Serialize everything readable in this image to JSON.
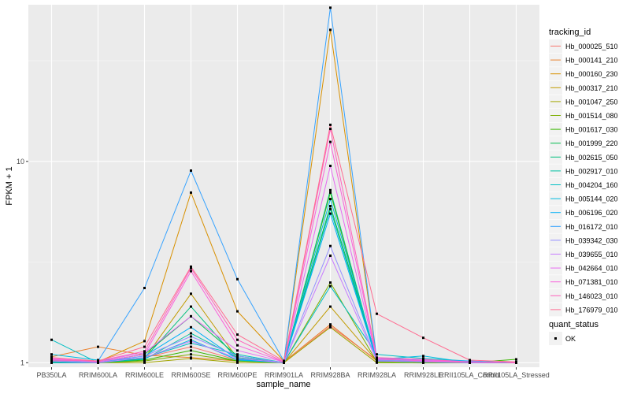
{
  "chart_data": {
    "type": "line",
    "xlabel": "sample_name",
    "ylabel": "FPKM + 1",
    "y_scale": "log10",
    "ylim": [
      0.95,
      60
    ],
    "y_ticks": [
      1,
      10
    ],
    "grid": true,
    "legend_position": "right",
    "categories": [
      "PB350LA",
      "RRIM600LA",
      "RRIM600LE",
      "RRIM600SE",
      "RRIM600PE",
      "RRIM901LA",
      "RRIM928BA",
      "RRIM928LA",
      "RRIM928LE",
      "RRII105LA_Control",
      "RRII105LA_Stressed"
    ],
    "color_legend_title": "tracking_id",
    "shape_legend_title": "quant_status",
    "shape_legend_entries": [
      "OK"
    ],
    "series": [
      {
        "name": "Hb_000025_510",
        "color": "#F8766D",
        "values": [
          1.02,
          1.0,
          1.06,
          1.2,
          1.03,
          1.0,
          1.52,
          1.03,
          1.02,
          1.0,
          1.0
        ]
      },
      {
        "name": "Hb_000141_210",
        "color": "#EA8331",
        "values": [
          1.07,
          1.2,
          1.09,
          1.06,
          1.02,
          1.01,
          1.55,
          1.02,
          1.01,
          1.0,
          1.0
        ]
      },
      {
        "name": "Hb_000160_230",
        "color": "#D89000",
        "values": [
          1.03,
          1.01,
          1.28,
          7.0,
          1.8,
          1.02,
          45.0,
          1.04,
          1.02,
          1.0,
          1.0
        ]
      },
      {
        "name": "Hb_000317_210",
        "color": "#C09B00",
        "values": [
          1.01,
          1.0,
          1.05,
          2.2,
          1.05,
          1.0,
          1.9,
          1.02,
          1.01,
          1.0,
          1.0
        ]
      },
      {
        "name": "Hb_001047_250",
        "color": "#A3A500",
        "values": [
          1.0,
          1.0,
          1.0,
          1.05,
          1.0,
          1.0,
          1.5,
          1.0,
          1.0,
          1.0,
          1.0
        ]
      },
      {
        "name": "Hb_001514_080",
        "color": "#7CAE00",
        "values": [
          1.01,
          1.0,
          1.02,
          1.1,
          1.02,
          1.0,
          2.5,
          1.01,
          1.0,
          1.0,
          1.0
        ]
      },
      {
        "name": "Hb_001617_030",
        "color": "#39B600",
        "values": [
          1.0,
          1.0,
          1.03,
          1.15,
          1.02,
          1.0,
          7.0,
          1.01,
          1.0,
          1.0,
          1.04
        ]
      },
      {
        "name": "Hb_001999_220",
        "color": "#00BB4E",
        "values": [
          1.02,
          1.01,
          1.1,
          1.7,
          1.08,
          1.0,
          6.0,
          1.05,
          1.03,
          1.01,
          1.0
        ]
      },
      {
        "name": "Hb_002615_050",
        "color": "#00BF7D",
        "values": [
          1.01,
          1.0,
          1.05,
          1.9,
          1.04,
          1.0,
          7.2,
          1.02,
          1.01,
          1.0,
          1.0
        ]
      },
      {
        "name": "Hb_002917_010",
        "color": "#00C1A3",
        "values": [
          1.02,
          1.0,
          1.04,
          1.4,
          1.06,
          1.0,
          5.8,
          1.03,
          1.01,
          1.0,
          1.0
        ]
      },
      {
        "name": "Hb_004204_160",
        "color": "#00BFC4",
        "values": [
          1.3,
          1.0,
          1.06,
          1.25,
          1.1,
          1.0,
          2.4,
          1.1,
          1.05,
          1.02,
          1.0
        ]
      },
      {
        "name": "Hb_005144_020",
        "color": "#00BAE0",
        "values": [
          1.1,
          1.03,
          1.05,
          1.3,
          1.03,
          1.0,
          6.5,
          1.04,
          1.08,
          1.0,
          1.0
        ]
      },
      {
        "name": "Hb_006196_020",
        "color": "#00B0F6",
        "values": [
          1.0,
          1.0,
          1.08,
          1.5,
          1.04,
          1.0,
          5.5,
          1.02,
          1.01,
          1.0,
          1.0
        ]
      },
      {
        "name": "Hb_016172_010",
        "color": "#35A2FF",
        "values": [
          1.04,
          1.02,
          2.35,
          9.0,
          2.6,
          1.02,
          58.0,
          1.05,
          1.03,
          1.02,
          1.0
        ]
      },
      {
        "name": "Hb_039342_030",
        "color": "#9590FF",
        "values": [
          1.03,
          1.01,
          1.08,
          1.35,
          1.08,
          1.0,
          3.8,
          1.03,
          1.02,
          1.01,
          1.0
        ]
      },
      {
        "name": "Hb_039655_010",
        "color": "#C77CFF",
        "values": [
          1.02,
          1.0,
          1.06,
          1.28,
          1.05,
          1.0,
          3.4,
          1.02,
          1.01,
          1.0,
          1.0
        ]
      },
      {
        "name": "Hb_042664_010",
        "color": "#E76BF3",
        "values": [
          1.04,
          1.02,
          1.12,
          1.7,
          1.15,
          1.01,
          9.5,
          1.04,
          1.03,
          1.01,
          1.0
        ]
      },
      {
        "name": "Hb_071381_010",
        "color": "#FA62DB",
        "values": [
          1.05,
          1.01,
          1.1,
          2.85,
          1.22,
          1.01,
          12.5,
          1.05,
          1.02,
          1.01,
          1.0
        ]
      },
      {
        "name": "Hb_146023_010",
        "color": "#FF62BC",
        "values": [
          1.03,
          1.02,
          1.14,
          2.95,
          1.3,
          1.01,
          14.5,
          1.06,
          1.04,
          1.01,
          1.0
        ]
      },
      {
        "name": "Hb_176979_010",
        "color": "#FF6C91",
        "values": [
          1.06,
          1.02,
          1.2,
          3.0,
          1.38,
          1.02,
          15.2,
          1.75,
          1.33,
          1.03,
          1.01
        ]
      }
    ]
  }
}
